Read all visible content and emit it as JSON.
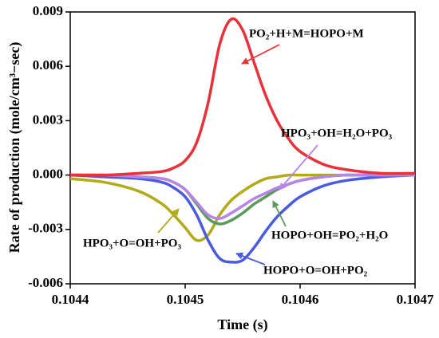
{
  "chart_data": {
    "type": "line",
    "xlabel": "Time (s)",
    "ylabel": "Rate of production (mole/cm³−sec)",
    "x": [
      0.1044,
      0.10443,
      0.10446,
      0.10448,
      0.10449,
      0.1045,
      0.10451,
      0.10452,
      0.10453,
      0.10454,
      0.10455,
      0.10456,
      0.10457,
      0.10458,
      0.10459,
      0.1046,
      0.10462,
      0.10464,
      0.10467,
      0.1047
    ],
    "series": [
      {
        "name": "PO₂+H+M=HOPO+M",
        "color": "#e8323a",
        "values": [
          0,
          0,
          0.0001,
          0.0002,
          0.0004,
          0.0008,
          0.0018,
          0.004,
          0.0072,
          0.0086,
          0.008,
          0.0062,
          0.0044,
          0.003,
          0.002,
          0.0013,
          0.0006,
          0.0003,
          0.0001,
          0.0001
        ]
      },
      {
        "name": "HPO₃+OH=H₂O+PO₃",
        "color": "#b784e8",
        "values": [
          0,
          0,
          -0.0001,
          -0.0002,
          -0.0004,
          -0.0008,
          -0.0015,
          -0.0022,
          -0.0024,
          -0.0021,
          -0.0017,
          -0.0013,
          -0.001,
          -0.0007,
          -0.0005,
          -0.0003,
          -0.0001,
          0,
          0,
          0
        ]
      },
      {
        "name": "HOPO+OH=PO₂+H₂O",
        "color": "#5a9a5a",
        "values": [
          0,
          0,
          -0.0001,
          -0.0002,
          -0.0004,
          -0.0008,
          -0.0016,
          -0.0024,
          -0.0027,
          -0.0025,
          -0.0021,
          -0.0016,
          -0.0012,
          -0.0008,
          -0.0005,
          -0.0003,
          -0.0001,
          0,
          0,
          0
        ]
      },
      {
        "name": "HOPO+O=OH+PO₂",
        "color": "#4a5be0",
        "values": [
          0,
          -0.0001,
          -0.0002,
          -0.0004,
          -0.0007,
          -0.0012,
          -0.0022,
          -0.0036,
          -0.0046,
          -0.0048,
          -0.0047,
          -0.004,
          -0.0031,
          -0.0023,
          -0.0017,
          -0.0012,
          -0.0006,
          -0.0003,
          -0.0001,
          0
        ]
      },
      {
        "name": "HPO₃+O=OH+PO₃",
        "color": "#b3aa1a",
        "values": [
          -0.0002,
          -0.0004,
          -0.0009,
          -0.0016,
          -0.0022,
          -0.0029,
          -0.0036,
          -0.0033,
          -0.0022,
          -0.0014,
          -0.0009,
          -0.0005,
          -0.0002,
          -0.0001,
          0,
          0,
          0,
          0,
          0,
          0
        ]
      }
    ],
    "xlim": [
      0.1044,
      0.1047
    ],
    "xticks": [
      0.1044,
      0.1045,
      0.1046,
      0.1047
    ],
    "ylim": [
      -0.006,
      0.009
    ],
    "yticks": [
      -0.006,
      -0.003,
      {
        "value": 0,
        "label": "0.000"
      },
      0.003,
      0.006,
      0.009
    ]
  }
}
